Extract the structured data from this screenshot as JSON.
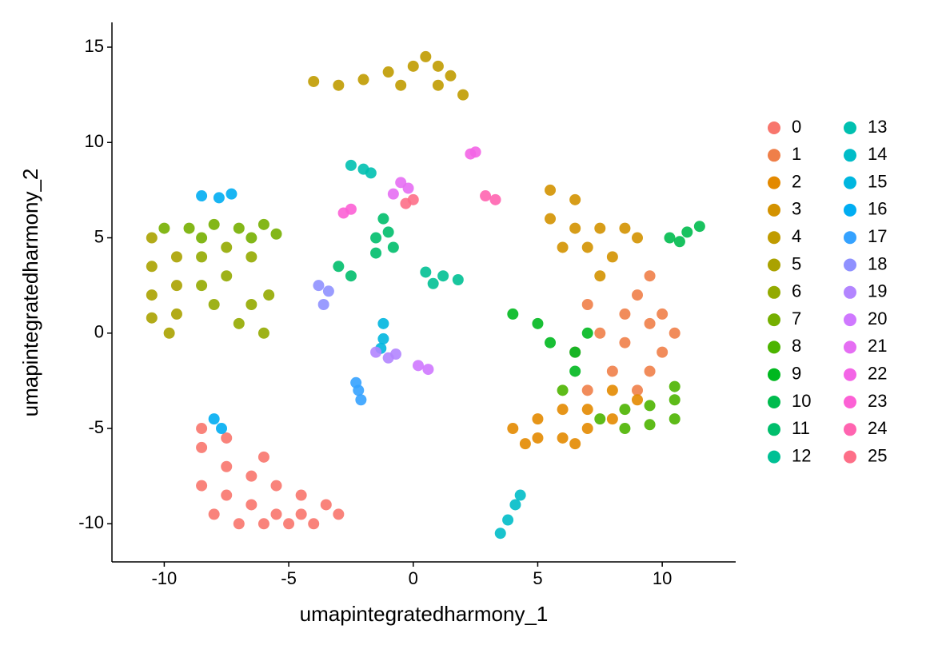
{
  "chart_data": {
    "type": "scatter",
    "xlabel": "umapintegratedharmony_1",
    "ylabel": "umapintegratedharmony_2",
    "xlim": [
      -12.1,
      12.95
    ],
    "ylim": [
      -12,
      16.3
    ],
    "xticks": [
      -10,
      -5,
      0,
      5,
      10
    ],
    "yticks": [
      -10,
      -5,
      0,
      5,
      10,
      15
    ],
    "grid": false,
    "legend": "right",
    "series": [
      {
        "name": "0",
        "color": "#F8766D",
        "x": [
          -8.5,
          -7.5,
          -6.5,
          -5.5,
          -4.5,
          -3.5,
          -8,
          -7,
          -6,
          -5,
          -4,
          -3,
          -7.5,
          -6.5,
          -5.5,
          -4.5,
          -8.5,
          -7.5,
          -6,
          -8.5
        ],
        "y": [
          -8,
          -8.5,
          -9,
          -9.5,
          -9.5,
          -9,
          -9.5,
          -10,
          -10,
          -10,
          -10,
          -9.5,
          -7,
          -7.5,
          -8,
          -8.5,
          -6,
          -5.5,
          -6.5,
          -5
        ]
      },
      {
        "name": "1",
        "color": "#EF7F49",
        "x": [
          6.5,
          7.5,
          8.5,
          9,
          9.5,
          10,
          10.5,
          10,
          9.5,
          9,
          8,
          7,
          8.5,
          7,
          9.5
        ],
        "y": [
          -1,
          0,
          1,
          2,
          3,
          1,
          0,
          -1,
          -2,
          -3,
          -2,
          -3,
          -0.5,
          1.5,
          0.5
        ]
      },
      {
        "name": "2",
        "color": "#E38900",
        "x": [
          4,
          5,
          6,
          7,
          8,
          9,
          5,
          6,
          7,
          4.5,
          8,
          6.5
        ],
        "y": [
          -5,
          -5.5,
          -5.5,
          -5,
          -4.5,
          -3.5,
          -4.5,
          -4,
          -4,
          -5.8,
          -3,
          -5.8
        ]
      },
      {
        "name": "3",
        "color": "#D39200",
        "x": [
          5.5,
          6.5,
          5.5,
          6.5,
          7.5,
          8.5,
          9,
          7,
          8,
          6,
          7.5
        ],
        "y": [
          7.5,
          7,
          6,
          5.5,
          5.5,
          5.5,
          5,
          4.5,
          4,
          4.5,
          3
        ]
      },
      {
        "name": "4",
        "color": "#C09B00",
        "x": [
          -4,
          -3,
          -2,
          -1,
          0,
          1,
          1.5,
          2,
          0.5,
          -0.5,
          1
        ],
        "y": [
          13.2,
          13,
          13.3,
          13.7,
          14,
          14,
          13.5,
          12.5,
          14.5,
          13,
          13
        ]
      },
      {
        "name": "5",
        "color": "#AAA200",
        "x": [
          -10.5,
          -10.5,
          -10.5,
          -10.5,
          -9.5,
          -9.5,
          -9.5,
          -9.8
        ],
        "y": [
          5,
          3.5,
          2,
          0.8,
          4,
          2.5,
          1,
          0
        ]
      },
      {
        "name": "6",
        "color": "#93AA00",
        "x": [
          -8.5,
          -7.5,
          -6.5,
          -5.8,
          -8,
          -7,
          -6,
          -8.5,
          -6.5,
          -7.5
        ],
        "y": [
          4,
          3,
          4,
          2,
          1.5,
          0.5,
          0,
          2.5,
          1.5,
          4.5
        ]
      },
      {
        "name": "7",
        "color": "#75AF00",
        "x": [
          -10,
          -9,
          -8,
          -7,
          -6,
          -5.5,
          -8.5,
          -6.5
        ],
        "y": [
          5.5,
          5.5,
          5.7,
          5.5,
          5.7,
          5.2,
          5,
          5
        ]
      },
      {
        "name": "8",
        "color": "#4CB400",
        "x": [
          7.5,
          8.5,
          9.5,
          10.5,
          10.5,
          9.5,
          10.5,
          6,
          8.5
        ],
        "y": [
          -4.5,
          -4,
          -3.8,
          -3.5,
          -4.5,
          -4.8,
          -2.8,
          -3,
          -5
        ]
      },
      {
        "name": "9",
        "color": "#00B81F",
        "x": [
          4,
          5,
          5.5,
          6.5,
          6.5,
          7
        ],
        "y": [
          1,
          0.5,
          -0.5,
          -1,
          -2,
          0
        ]
      },
      {
        "name": "10",
        "color": "#00BB4E",
        "x": [
          10.3,
          11,
          11.5,
          10.7
        ],
        "y": [
          5,
          5.3,
          5.6,
          4.8
        ]
      },
      {
        "name": "11",
        "color": "#00BE6C",
        "x": [
          -1.5,
          -1,
          -0.8,
          -1.2,
          -2.5,
          -3,
          -1.5
        ],
        "y": [
          5,
          5.3,
          4.5,
          6,
          3,
          3.5,
          4.2
        ]
      },
      {
        "name": "12",
        "color": "#00C094",
        "x": [
          0.5,
          1.2,
          1.8,
          0.8
        ],
        "y": [
          3.2,
          3,
          2.8,
          2.6
        ]
      },
      {
        "name": "13",
        "color": "#00C0B0",
        "x": [
          -2.5,
          -2,
          -1.7
        ],
        "y": [
          8.8,
          8.6,
          8.4
        ]
      },
      {
        "name": "14",
        "color": "#00BCC8",
        "x": [
          3.5,
          3.8,
          4.1,
          4.3
        ],
        "y": [
          -10.5,
          -9.8,
          -9,
          -8.5
        ]
      },
      {
        "name": "15",
        "color": "#00B6DF",
        "x": [
          -1.2,
          -1.2,
          -1.3
        ],
        "y": [
          0.5,
          -0.3,
          -0.8
        ]
      },
      {
        "name": "16",
        "color": "#00ADF2",
        "x": [
          -8.5,
          -7.8,
          -7.3,
          -8,
          -7.7
        ],
        "y": [
          7.2,
          7.1,
          7.3,
          -4.5,
          -5
        ]
      },
      {
        "name": "17",
        "color": "#35A2FF",
        "x": [
          -2.2,
          -2.1,
          -2.3
        ],
        "y": [
          -3,
          -3.5,
          -2.6
        ]
      },
      {
        "name": "18",
        "color": "#8F91FF",
        "x": [
          -3.8,
          -3.4,
          -3.6
        ],
        "y": [
          2.5,
          2.2,
          1.5
        ]
      },
      {
        "name": "19",
        "color": "#B385FF",
        "x": [
          -1.5,
          -1,
          -0.7
        ],
        "y": [
          -1,
          -1.3,
          -1.1
        ]
      },
      {
        "name": "20",
        "color": "#CF78FF",
        "x": [
          0.2,
          0.6
        ],
        "y": [
          -1.7,
          -1.9
        ]
      },
      {
        "name": "21",
        "color": "#E56EF3",
        "x": [
          -0.5,
          -0.2,
          -0.8
        ],
        "y": [
          7.9,
          7.6,
          7.3
        ]
      },
      {
        "name": "22",
        "color": "#F365E6",
        "x": [
          2.3,
          2.5
        ],
        "y": [
          9.4,
          9.5
        ]
      },
      {
        "name": "23",
        "color": "#FC61D5",
        "x": [
          -2.8,
          -2.5
        ],
        "y": [
          6.3,
          6.5
        ]
      },
      {
        "name": "24",
        "color": "#FF64B0",
        "x": [
          2.9,
          3.3
        ],
        "y": [
          7.2,
          7
        ]
      },
      {
        "name": "25",
        "color": "#FD6F88",
        "x": [
          -0.3,
          0
        ],
        "y": [
          6.8,
          7
        ]
      }
    ]
  }
}
